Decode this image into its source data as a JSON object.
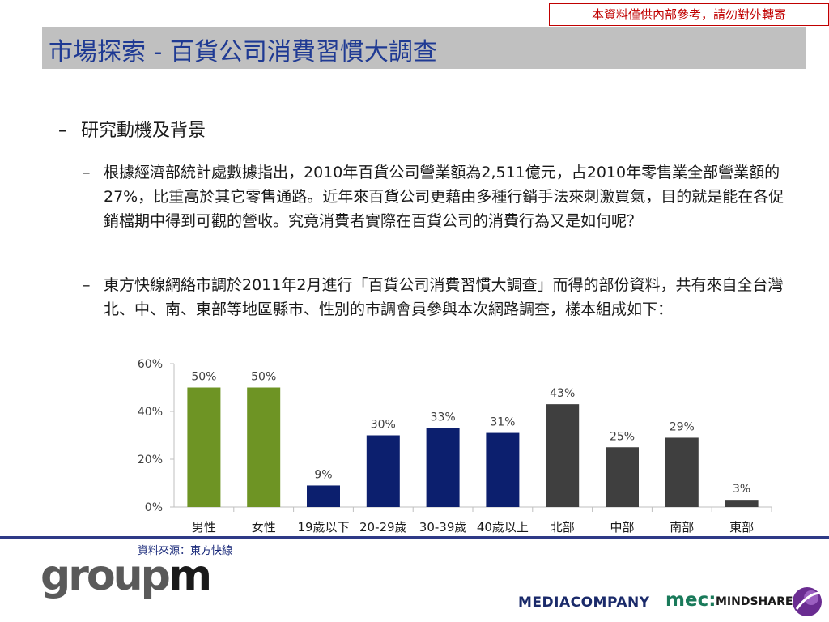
{
  "header": {
    "confidential_notice": "本資料僅供內部參考，請勿對外轉寄",
    "title": "市場探索 - 百貨公司消費習慣大調查"
  },
  "content": {
    "section_dash": "–",
    "section_heading": "研究動機及背景",
    "paragraph_dash": "–",
    "paragraph1": "根據經濟部統計處數據指出，2010年百貨公司營業額為2,511億元，占2010年零售業全部營業額的27%，比重高於其它零售通路。近年來百貨公司更藉由多種行銷手法來刺激買氣，目的就是能在各促銷檔期中得到可觀的營收。究竟消費者實際在百貨公司的消費行為又是如何呢？",
    "paragraph2": "東方快線網絡市調於2011年2月進行「百貨公司消費習慣大調查」而得的部份資料，共有來自全台灣北、中、南、東部等地區縣市、性別的市調會員參與本次網路調查，樣本組成如下："
  },
  "chart_data": {
    "type": "bar",
    "categories": [
      "男性",
      "女性",
      "19歲以下",
      "20-29歲",
      "30-39歲",
      "40歲以上",
      "北部",
      "中部",
      "南部",
      "東部"
    ],
    "values": [
      50,
      50,
      9,
      30,
      33,
      31,
      43,
      25,
      29,
      3
    ],
    "data_labels": [
      "50%",
      "50%",
      "9%",
      "30%",
      "33%",
      "31%",
      "43%",
      "25%",
      "29%",
      "3%"
    ],
    "bar_colors": [
      "#6e9424",
      "#6e9424",
      "#0c1f6e",
      "#0c1f6e",
      "#0c1f6e",
      "#0c1f6e",
      "#3f3f3f",
      "#3f3f3f",
      "#3f3f3f",
      "#3f3f3f"
    ],
    "yticks": [
      0,
      20,
      40,
      60
    ],
    "ytick_labels": [
      "0%",
      "20%",
      "40%",
      "60%"
    ],
    "ylim": [
      0,
      60
    ],
    "title": "",
    "xlabel": "",
    "ylabel": ""
  },
  "footer": {
    "source": "資料來源：東方快線",
    "logo_groupm_a": "group",
    "logo_groupm_b": "m",
    "logo_mediacompany": "MEDIACOMPANY",
    "logo_mec": "mec:",
    "logo_mindshare": "MINDSHARE"
  },
  "colors": {
    "title_text": "#1f3a93",
    "title_bg": "#c0c0c0",
    "accent_line": "#2e3a87",
    "confidential": "#c00000"
  }
}
